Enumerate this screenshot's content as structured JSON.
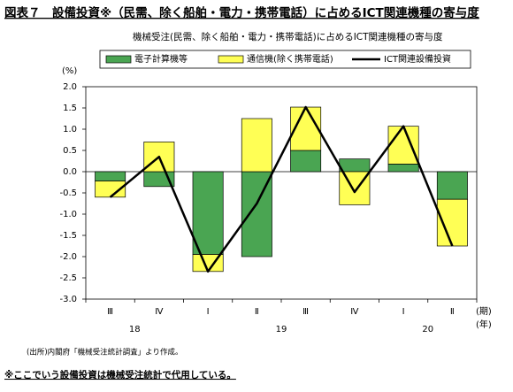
{
  "chart_data": {
    "type": "bar-line",
    "title": "図表７　設備投資※（民需、除く船舶・電力・携帯電話）に占めるICT関連機種の寄与度",
    "subtitle": "機械受注(民需、除く船舶・電力・携帯電話)に占めるICT関連機種の寄与度",
    "y_unit": "(%)",
    "x_unit_quarter": "(期)",
    "x_unit_year": "(年)",
    "categories": [
      "Ⅲ",
      "Ⅳ",
      "Ⅰ",
      "Ⅱ",
      "Ⅲ",
      "Ⅳ",
      "Ⅰ",
      "Ⅱ"
    ],
    "years": [
      "18",
      null,
      "19",
      null,
      null,
      null,
      "20",
      null
    ],
    "series": [
      {
        "name": "電子計算機等",
        "type": "bar",
        "color": "#4aa552",
        "values": [
          -0.22,
          -0.35,
          -1.95,
          -2.0,
          0.5,
          0.3,
          0.18,
          -0.65
        ]
      },
      {
        "name": "通信機(除く携帯電話)",
        "type": "bar",
        "color": "#ffff55",
        "values": [
          -0.38,
          0.7,
          -0.4,
          1.25,
          1.02,
          -0.78,
          0.89,
          -1.1
        ]
      },
      {
        "name": "ICT関連設備投資",
        "type": "line",
        "color": "#000000",
        "values": [
          -0.6,
          0.35,
          -2.35,
          -0.75,
          1.52,
          -0.48,
          1.07,
          -1.75
        ]
      }
    ],
    "ylim": [
      -3,
      2
    ],
    "yticks": [
      {
        "value": 2,
        "label": "2.0"
      },
      -0.5,
      {
        "value": 1,
        "label": "1.0"
      },
      0.5,
      {
        "value": 0,
        "label": "0.0"
      },
      1.5,
      {
        "value": -1,
        "label": "-1.0"
      },
      -1.5,
      {
        "value": -2,
        "label": "-2.0"
      },
      -2.5,
      {
        "value": -3,
        "label": "-3.0"
      }
    ],
    "source": "(出所)内閣府「機械受注統計調査」より作成。",
    "note": "※ここでいう設備投資は機械受注統計で代用している。"
  }
}
